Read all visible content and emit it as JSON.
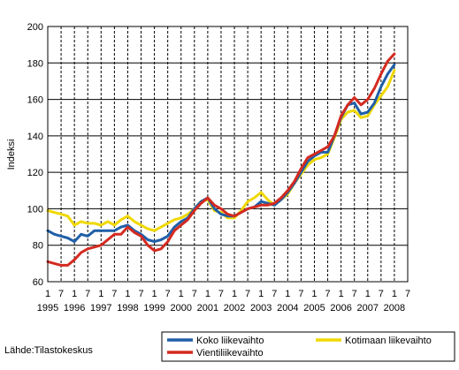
{
  "chart_data": {
    "type": "line",
    "ylabel": "Indeksi",
    "ylim": [
      60,
      200
    ],
    "yticks": [
      60,
      80,
      100,
      120,
      140,
      160,
      180,
      200
    ],
    "x_start": 1995.0,
    "x_step": 0.25,
    "x_tick_labels": [
      "1",
      "7",
      "1",
      "7",
      "1",
      "7",
      "1",
      "7",
      "1",
      "7",
      "1",
      "7",
      "1",
      "7",
      "1",
      "7",
      "1",
      "7",
      "1",
      "7",
      "1",
      "7",
      "1",
      "7",
      "1",
      "7",
      "1",
      "7"
    ],
    "x_year_labels": [
      "1995",
      "1996",
      "1997",
      "1998",
      "1999",
      "2000",
      "2001",
      "2002",
      "2003",
      "2004",
      "2005",
      "2006",
      "2007",
      "2008"
    ],
    "grid": true,
    "legend_position": "bottom-right",
    "source": "Lähde:Tilastokeskus",
    "series": [
      {
        "name": "Koko liikevaihto",
        "color": "#1f5fa8",
        "values": [
          88,
          86,
          85,
          84,
          82,
          86,
          85,
          88,
          88,
          88,
          88,
          90,
          91,
          88,
          86,
          83,
          82,
          83,
          85,
          90,
          93,
          95,
          100,
          104,
          106,
          100,
          97,
          96,
          96,
          98,
          100,
          101,
          104,
          103,
          102,
          105,
          109,
          114,
          120,
          126,
          129,
          131,
          131,
          140,
          150,
          157,
          158,
          152,
          153,
          158,
          167,
          174,
          179
        ]
      },
      {
        "name": "Kotimaan liikevaihto",
        "color": "#f0d800",
        "values": [
          99,
          98,
          97,
          96,
          91,
          93,
          92,
          92,
          91,
          93,
          91,
          94,
          96,
          93,
          91,
          89,
          88,
          90,
          92,
          94,
          95,
          97,
          100,
          104,
          105,
          99,
          98,
          95,
          95,
          99,
          104,
          106,
          109,
          105,
          102,
          105,
          108,
          114,
          119,
          124,
          127,
          128,
          130,
          139,
          149,
          153,
          154,
          150,
          151,
          157,
          162,
          167,
          176
        ]
      },
      {
        "name": "Vientiliikevaihto",
        "color": "#d42a20",
        "values": [
          71,
          70,
          69,
          69,
          72,
          76,
          78,
          79,
          80,
          83,
          86,
          86,
          90,
          87,
          85,
          80,
          77,
          78,
          82,
          88,
          91,
          94,
          99,
          103,
          106,
          102,
          100,
          97,
          96,
          98,
          100,
          101,
          102,
          102,
          103,
          106,
          110,
          115,
          122,
          128,
          130,
          132,
          134,
          140,
          151,
          157,
          161,
          157,
          160,
          166,
          174,
          181,
          185
        ]
      }
    ]
  }
}
